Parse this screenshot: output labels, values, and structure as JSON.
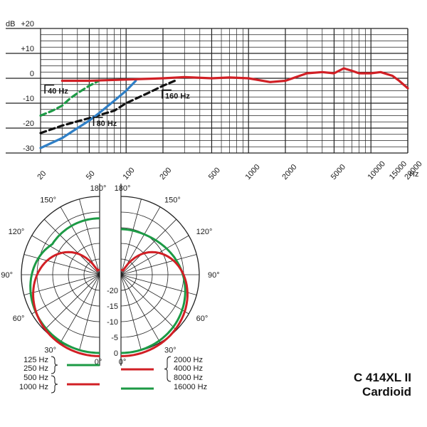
{
  "title": {
    "line1": "C 414XL II",
    "line2": "Cardioid"
  },
  "colors": {
    "red": "#d11f25",
    "green": "#1c9a45",
    "blue": "#2f7fc6",
    "black": "#111111",
    "grid": "#222222"
  },
  "chart_data": [
    {
      "type": "line",
      "xscale": "log",
      "xlabel": "Hz",
      "ylabel": "dB",
      "xlim": [
        20,
        20000
      ],
      "ylim": [
        -30,
        20
      ],
      "yticks": [
        20,
        10,
        0,
        -10,
        -20,
        -30
      ],
      "ytick_labels": [
        "+20",
        "+10",
        "0",
        "-10",
        "-20",
        "-30"
      ],
      "xticks": [
        20,
        50,
        100,
        200,
        500,
        1000,
        2000,
        5000,
        10000,
        15000,
        20000
      ],
      "xtick_labels": [
        "20",
        "50",
        "100",
        "200",
        "500",
        "1000",
        "2000",
        "5000",
        "10000",
        "15000",
        "20000"
      ],
      "grid": true,
      "series": [
        {
          "name": "",
          "color": "red",
          "style": "solid",
          "x": [
            30,
            50,
            100,
            200,
            300,
            500,
            700,
            1000,
            1500,
            2000,
            3000,
            4000,
            5000,
            6000,
            7000,
            8000,
            10000,
            12000,
            15000,
            17000,
            20000
          ],
          "y": [
            -1,
            -1,
            -0.5,
            0,
            0.5,
            0,
            0.3,
            0,
            -1.5,
            -1,
            2,
            2.5,
            2,
            4,
            3,
            2,
            2,
            2.5,
            1,
            -1,
            -4
          ]
        },
        {
          "name": "",
          "color": "green",
          "style": "dashed",
          "x": [
            20,
            25,
            30,
            35,
            40,
            50,
            60
          ],
          "y": [
            -15,
            -13,
            -11,
            -8,
            -6,
            -3,
            -1
          ]
        },
        {
          "name": "",
          "color": "blue",
          "style": "solid",
          "x": [
            20,
            30,
            40,
            50,
            60,
            80,
            100,
            120
          ],
          "y": [
            -28,
            -24,
            -20,
            -17,
            -14,
            -9,
            -5,
            -1
          ]
        },
        {
          "name": "",
          "color": "black",
          "style": "dashed",
          "x": [
            20,
            30,
            50,
            80,
            100,
            150,
            200,
            250
          ],
          "y": [
            -22,
            -19,
            -16,
            -13,
            -10,
            -6,
            -3,
            -1
          ]
        }
      ],
      "annotations": [
        {
          "text": "40 Hz",
          "x": 22,
          "y": -5
        },
        {
          "text": "80 Hz",
          "x": 55,
          "y": -18
        },
        {
          "text": "160 Hz",
          "x": 200,
          "y": -7
        }
      ]
    },
    {
      "type": "polar",
      "angle_labels_left": [
        "180°",
        "150°",
        "120°",
        "90°",
        "60°",
        "30°",
        "0°"
      ],
      "angle_labels_right": [
        "180°",
        "150°",
        "120°",
        "90°",
        "60°",
        "30°",
        "0°"
      ],
      "radial_labels": [
        "-20",
        "-15",
        "-10",
        "-5",
        "0"
      ],
      "legend": {
        "left": [
          "125 Hz",
          "250 Hz",
          "500 Hz",
          "1000 Hz"
        ],
        "right": [
          "2000 Hz",
          "4000 Hz",
          "8000 Hz",
          "16000 Hz"
        ]
      }
    }
  ]
}
